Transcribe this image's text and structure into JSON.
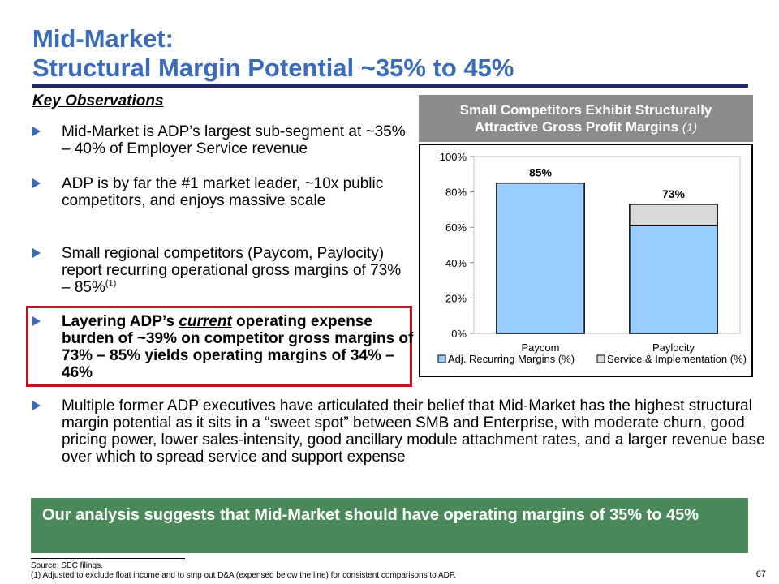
{
  "title": {
    "line1": "Mid-Market:",
    "line2": "Structural Margin Potential ~35% to 45%"
  },
  "key_observations_heading": "Key Observations",
  "bullets": [
    {
      "pre": "Mid-Market is ADP’s largest sub-segment at ~35% – 40% of Employer Service revenue"
    },
    {
      "pre": "ADP is by far the #1 market leader, ~10x public competitors, and enjoys massive scale"
    },
    {
      "pre": "Small regional competitors (Paycom, Paylocity) report recurring operational gross margins of 73% – 85%",
      "sup": "(1)"
    },
    {
      "pre": "Layering ADP’s ",
      "emph": "current",
      "post": " operating expense burden of ~39% on competitor gross margins of 73% – 85% yields operating margins of 34% – 46%"
    },
    {
      "pre": "Multiple former ADP executives have articulated their belief that Mid-Market has the highest structural margin potential as it sits in a “sweet spot” between SMB and Enterprise, with moderate churn, good pricing power, lower sales-intensity, good ancillary module attachment rates, and a larger revenue base over which to spread service and support expense"
    }
  ],
  "chart_header": {
    "line1": "Small Competitors Exhibit Structurally",
    "line2": "Attractive Gross Profit Margins",
    "note": "(1)"
  },
  "chart_data": {
    "type": "bar",
    "stacked": true,
    "categories": [
      "Paycom",
      "Paylocity"
    ],
    "series": [
      {
        "name": "Adj. Recurring Margins (%)",
        "values": [
          85,
          61
        ],
        "color": "#99ccff"
      },
      {
        "name": "Service & Implementation (%)",
        "values": [
          0,
          12
        ],
        "color": "#d9d9d9"
      }
    ],
    "totals": [
      85,
      73
    ],
    "total_labels": [
      "85%",
      "73%"
    ],
    "ylim": [
      0,
      100
    ],
    "yticks": [
      "0%",
      "20%",
      "40%",
      "60%",
      "80%",
      "100%"
    ],
    "legend_position": "bottom"
  },
  "conclusion": "Our analysis suggests that Mid-Market should have operating margins of 35% to 45%",
  "source": {
    "line1": "Source: SEC filings.",
    "line2": "(1)    Adjusted to exclude float income and to strip out D&A (expensed below the line) for consistent comparisons to ADP."
  },
  "page_number": "67"
}
